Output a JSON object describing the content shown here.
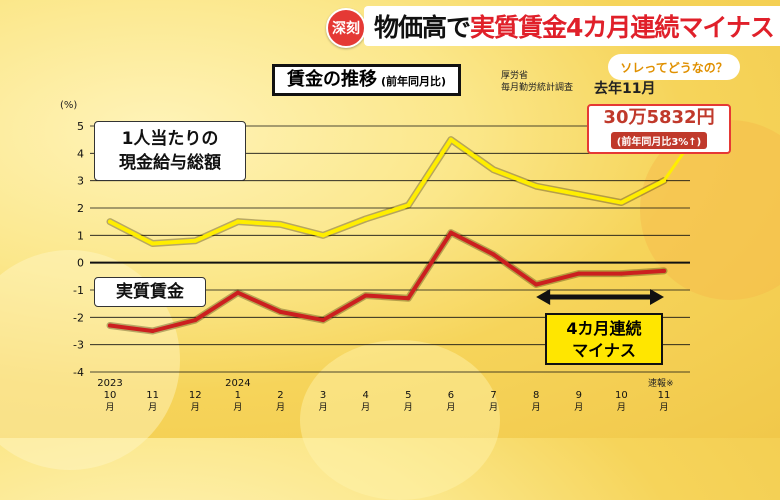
{
  "badge": "深刻",
  "headline": {
    "part1": "物価高で",
    "part2": "実質賃金4カ月連続マイナス"
  },
  "chart_title": {
    "main": "賃金の推移",
    "sub": "(前年同月比)"
  },
  "source": {
    "line1": "厚労省",
    "line2": "毎月勤労統計調査"
  },
  "period": "去年11月",
  "tagline": "ソレってどうなの？",
  "callout": {
    "value": "30万5832円",
    "change": "(前年同月比3%↑)"
  },
  "series_labels": {
    "nominal_line1": "1人当たりの",
    "nominal_line2": "現金給与総額",
    "real": "実質賃金"
  },
  "streak": {
    "line1": "4カ月連続",
    "line2": "マイナス"
  },
  "yunit": "(%)",
  "note": "速報※",
  "colors": {
    "nominal": "#ffee00",
    "real": "#cc1f1f",
    "accent_red": "#e53935",
    "highlight_yellow": "#ffe600"
  },
  "chart_data": {
    "type": "line",
    "categories": [
      {
        "year": "2023",
        "month": "10",
        "unit": "月"
      },
      {
        "year": "",
        "month": "11",
        "unit": "月"
      },
      {
        "year": "",
        "month": "12",
        "unit": "月"
      },
      {
        "year": "2024",
        "month": "1",
        "unit": "月"
      },
      {
        "year": "",
        "month": "2",
        "unit": "月"
      },
      {
        "year": "",
        "month": "3",
        "unit": "月"
      },
      {
        "year": "",
        "month": "4",
        "unit": "月"
      },
      {
        "year": "",
        "month": "5",
        "unit": "月"
      },
      {
        "year": "",
        "month": "6",
        "unit": "月"
      },
      {
        "year": "",
        "month": "7",
        "unit": "月"
      },
      {
        "year": "",
        "month": "8",
        "unit": "月"
      },
      {
        "year": "",
        "month": "9",
        "unit": "月"
      },
      {
        "year": "",
        "month": "10",
        "unit": "月"
      },
      {
        "year": "",
        "month": "11",
        "unit": "月"
      }
    ],
    "series": [
      {
        "name": "1人当たりの現金給与総額",
        "values": [
          1.5,
          0.7,
          0.8,
          1.5,
          1.4,
          1.0,
          1.6,
          2.1,
          4.5,
          3.4,
          2.8,
          2.5,
          2.2,
          3.0
        ]
      },
      {
        "name": "実質賃金",
        "values": [
          -2.3,
          -2.5,
          -2.1,
          -1.1,
          -1.8,
          -2.1,
          -1.2,
          -1.3,
          1.1,
          0.3,
          -0.8,
          -0.4,
          -0.4,
          -0.3
        ]
      }
    ],
    "ylim": [
      -4,
      5
    ],
    "yticks": [
      5,
      4,
      3,
      2,
      1,
      0,
      -1,
      -2,
      -3,
      -4
    ],
    "ylabel": "(%)",
    "grid": true
  }
}
